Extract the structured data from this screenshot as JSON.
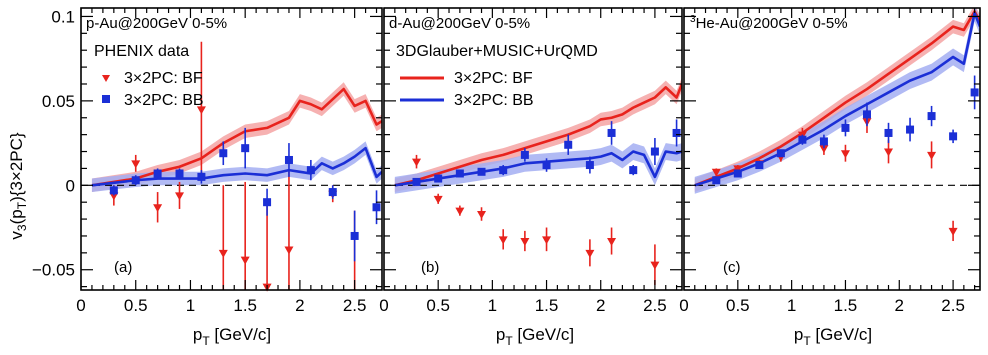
{
  "figure": {
    "ylabel_main": "v",
    "ylabel_sub1": "3",
    "ylabel_mid": "(p",
    "ylabel_sub2": "T",
    "ylabel_end": "){3×2PC}",
    "xlabel_main": "p",
    "xlabel_sub": "T",
    "xlabel_end": " [GeV/c]",
    "legend_data_title": "PHENIX data",
    "legend_model_title": "3DGlauber+MUSIC+UrQMD",
    "legend_bf_data": "3×2PC: BF",
    "legend_bb_data": "3×2PC: BB",
    "legend_bf_model": "3×2PC: BF",
    "legend_bb_model": "3×2PC: BB",
    "colors": {
      "bf": "#e8231d",
      "bb": "#1b2fd6",
      "bf_band": "#f5a3a3",
      "bb_band": "#a3aef2"
    }
  },
  "chart_data": [
    {
      "type": "line",
      "panel_title": "p-Au@200GeV 0-5%",
      "panel_tag": "(a)",
      "xlim": [
        0,
        2.75
      ],
      "ylim": [
        -0.062,
        0.105
      ],
      "xticks": [
        "0",
        "0.5",
        "1",
        "1.5",
        "2",
        "2.5"
      ],
      "yticks": [
        "−0.05",
        "0",
        "0.05",
        "0.1"
      ],
      "data_series": [
        {
          "name": "3×2PC: BF",
          "marker": "triangle-down",
          "points": [
            {
              "x": 0.3,
              "y": -0.006,
              "err": 0.006
            },
            {
              "x": 0.5,
              "y": 0.013,
              "err": 0.005
            },
            {
              "x": 0.7,
              "y": -0.013,
              "err": 0.009
            },
            {
              "x": 0.9,
              "y": -0.006,
              "err": 0.008
            },
            {
              "x": 1.1,
              "y": 0.045,
              "err": 0.04
            },
            {
              "x": 1.3,
              "y": -0.04,
              "err": 0.04
            },
            {
              "x": 1.5,
              "y": -0.044,
              "err": 0.046
            },
            {
              "x": 1.7,
              "y": -0.06,
              "err": 0.05
            },
            {
              "x": 1.9,
              "y": -0.038,
              "err": 0.046
            },
            {
              "x": 2.3,
              "y": -0.005,
              "err": 0.005
            },
            {
              "x": 2.5,
              "y": -0.075,
              "err": 0.06
            }
          ]
        },
        {
          "name": "3×2PC: BB",
          "marker": "square",
          "points": [
            {
              "x": 0.3,
              "y": -0.003,
              "err": 0.003
            },
            {
              "x": 0.5,
              "y": 0.003,
              "err": 0.003
            },
            {
              "x": 0.7,
              "y": 0.007,
              "err": 0.003
            },
            {
              "x": 0.9,
              "y": 0.007,
              "err": 0.003
            },
            {
              "x": 1.1,
              "y": 0.005,
              "err": 0.004
            },
            {
              "x": 1.3,
              "y": 0.019,
              "err": 0.007
            },
            {
              "x": 1.5,
              "y": 0.022,
              "err": 0.012
            },
            {
              "x": 1.7,
              "y": -0.01,
              "err": 0.008
            },
            {
              "x": 1.9,
              "y": 0.015,
              "err": 0.01
            },
            {
              "x": 2.1,
              "y": 0.009,
              "err": 0.006
            },
            {
              "x": 2.3,
              "y": -0.004,
              "err": 0.004
            },
            {
              "x": 2.5,
              "y": -0.03,
              "err": 0.015
            },
            {
              "x": 2.7,
              "y": -0.013,
              "err": 0.01
            }
          ]
        }
      ],
      "model_series": [
        {
          "name": "3×2PC: BF",
          "x": [
            0.1,
            0.3,
            0.5,
            0.7,
            0.9,
            1.1,
            1.3,
            1.5,
            1.7,
            1.9,
            2.0,
            2.1,
            2.2,
            2.3,
            2.4,
            2.5,
            2.6,
            2.7,
            2.75
          ],
          "y": [
            0.0,
            0.002,
            0.004,
            0.008,
            0.011,
            0.016,
            0.025,
            0.032,
            0.034,
            0.04,
            0.05,
            0.048,
            0.045,
            0.051,
            0.057,
            0.047,
            0.05,
            0.036,
            0.038
          ],
          "band": 0.004
        },
        {
          "name": "3×2PC: BB",
          "x": [
            0.1,
            0.3,
            0.5,
            0.7,
            0.9,
            1.1,
            1.3,
            1.5,
            1.7,
            1.9,
            2.0,
            2.1,
            2.2,
            2.3,
            2.4,
            2.5,
            2.6,
            2.7,
            2.75
          ],
          "y": [
            0.0,
            0.0015,
            0.003,
            0.004,
            0.004,
            0.004,
            0.006,
            0.007,
            0.006,
            0.009,
            0.008,
            0.007,
            0.013,
            0.01,
            0.013,
            0.017,
            0.022,
            0.005,
            0.008
          ],
          "band": 0.004
        }
      ]
    },
    {
      "type": "line",
      "panel_title": "d-Au@200GeV 0-5%",
      "panel_tag": "(b)",
      "xlim": [
        0,
        2.75
      ],
      "ylim": [
        -0.062,
        0.105
      ],
      "xticks": [
        "0",
        "0.5",
        "1",
        "1.5",
        "2",
        "2.5"
      ],
      "yticks": [],
      "data_series": [
        {
          "name": "3×2PC: BF",
          "marker": "triangle-down",
          "points": [
            {
              "x": 0.3,
              "y": 0.014,
              "err": 0.004
            },
            {
              "x": 0.5,
              "y": -0.008,
              "err": 0.003
            },
            {
              "x": 0.7,
              "y": -0.015,
              "err": 0.003
            },
            {
              "x": 0.9,
              "y": -0.017,
              "err": 0.004
            },
            {
              "x": 1.1,
              "y": -0.032,
              "err": 0.006
            },
            {
              "x": 1.3,
              "y": -0.033,
              "err": 0.006
            },
            {
              "x": 1.5,
              "y": -0.032,
              "err": 0.007
            },
            {
              "x": 1.9,
              "y": -0.04,
              "err": 0.008
            },
            {
              "x": 2.1,
              "y": -0.033,
              "err": 0.008
            },
            {
              "x": 2.5,
              "y": -0.047,
              "err": 0.012
            }
          ]
        },
        {
          "name": "3×2PC: BB",
          "marker": "square",
          "points": [
            {
              "x": 0.3,
              "y": 0.002,
              "err": 0.001
            },
            {
              "x": 0.5,
              "y": 0.004,
              "err": 0.002
            },
            {
              "x": 0.7,
              "y": 0.007,
              "err": 0.002
            },
            {
              "x": 0.9,
              "y": 0.008,
              "err": 0.002
            },
            {
              "x": 1.1,
              "y": 0.009,
              "err": 0.003
            },
            {
              "x": 1.3,
              "y": 0.018,
              "err": 0.004
            },
            {
              "x": 1.5,
              "y": 0.012,
              "err": 0.004
            },
            {
              "x": 1.7,
              "y": 0.024,
              "err": 0.006
            },
            {
              "x": 1.9,
              "y": 0.012,
              "err": 0.005
            },
            {
              "x": 2.1,
              "y": 0.031,
              "err": 0.007
            },
            {
              "x": 2.3,
              "y": 0.009,
              "err": 0.003
            },
            {
              "x": 2.5,
              "y": 0.02,
              "err": 0.008
            },
            {
              "x": 2.7,
              "y": 0.031,
              "err": 0.008
            }
          ]
        }
      ],
      "model_series": [
        {
          "name": "3×2PC: BF",
          "x": [
            0.1,
            0.3,
            0.5,
            0.7,
            0.9,
            1.1,
            1.3,
            1.5,
            1.7,
            1.9,
            2.0,
            2.1,
            2.2,
            2.3,
            2.4,
            2.5,
            2.6,
            2.7,
            2.75
          ],
          "y": [
            0.0,
            0.003,
            0.007,
            0.011,
            0.015,
            0.018,
            0.022,
            0.026,
            0.03,
            0.035,
            0.039,
            0.04,
            0.042,
            0.046,
            0.049,
            0.052,
            0.058,
            0.052,
            0.06
          ],
          "band": 0.004
        },
        {
          "name": "3×2PC: BB",
          "x": [
            0.1,
            0.3,
            0.5,
            0.7,
            0.9,
            1.1,
            1.3,
            1.5,
            1.7,
            1.9,
            2.0,
            2.1,
            2.2,
            2.3,
            2.4,
            2.5,
            2.6,
            2.7,
            2.75
          ],
          "y": [
            0.0,
            0.002,
            0.004,
            0.006,
            0.008,
            0.01,
            0.013,
            0.014,
            0.015,
            0.016,
            0.017,
            0.019,
            0.015,
            0.02,
            0.018,
            0.005,
            0.02,
            0.019,
            0.02
          ],
          "band": 0.005
        }
      ]
    },
    {
      "type": "line",
      "panel_title": "He-Au@200GeV 0-5%",
      "panel_title_sup": "3",
      "panel_tag": "(c)",
      "xlim": [
        0,
        2.75
      ],
      "ylim": [
        -0.062,
        0.105
      ],
      "xticks": [
        "0",
        "0.5",
        "1",
        "1.5",
        "2",
        "2.5"
      ],
      "yticks": [],
      "data_series": [
        {
          "name": "3×2PC: BF",
          "marker": "triangle-down",
          "points": [
            {
              "x": 0.3,
              "y": 0.008,
              "err": 0.002
            },
            {
              "x": 0.5,
              "y": 0.01,
              "err": 0.002
            },
            {
              "x": 0.7,
              "y": 0.013,
              "err": 0.002
            },
            {
              "x": 0.9,
              "y": 0.017,
              "err": 0.003
            },
            {
              "x": 1.1,
              "y": 0.03,
              "err": 0.004
            },
            {
              "x": 1.3,
              "y": 0.022,
              "err": 0.004
            },
            {
              "x": 1.5,
              "y": 0.019,
              "err": 0.005
            },
            {
              "x": 1.7,
              "y": 0.038,
              "err": 0.007
            },
            {
              "x": 1.9,
              "y": 0.02,
              "err": 0.007
            },
            {
              "x": 2.3,
              "y": 0.018,
              "err": 0.008
            },
            {
              "x": 2.5,
              "y": -0.027,
              "err": 0.006
            }
          ]
        },
        {
          "name": "3×2PC: BB",
          "marker": "square",
          "points": [
            {
              "x": 0.3,
              "y": 0.003,
              "err": 0.001
            },
            {
              "x": 0.5,
              "y": 0.007,
              "err": 0.002
            },
            {
              "x": 0.7,
              "y": 0.012,
              "err": 0.002
            },
            {
              "x": 0.9,
              "y": 0.019,
              "err": 0.002
            },
            {
              "x": 1.1,
              "y": 0.027,
              "err": 0.003
            },
            {
              "x": 1.3,
              "y": 0.026,
              "err": 0.004
            },
            {
              "x": 1.5,
              "y": 0.034,
              "err": 0.005
            },
            {
              "x": 1.7,
              "y": 0.042,
              "err": 0.007
            },
            {
              "x": 1.9,
              "y": 0.031,
              "err": 0.006
            },
            {
              "x": 2.1,
              "y": 0.033,
              "err": 0.007
            },
            {
              "x": 2.3,
              "y": 0.041,
              "err": 0.006
            },
            {
              "x": 2.5,
              "y": 0.029,
              "err": 0.004
            },
            {
              "x": 2.7,
              "y": 0.055,
              "err": 0.01
            }
          ]
        }
      ],
      "model_series": [
        {
          "name": "3×2PC: BF",
          "x": [
            0.1,
            0.3,
            0.5,
            0.7,
            0.9,
            1.1,
            1.3,
            1.5,
            1.7,
            1.9,
            2.1,
            2.3,
            2.5,
            2.6,
            2.7,
            2.75
          ],
          "y": [
            0.0,
            0.005,
            0.01,
            0.016,
            0.023,
            0.031,
            0.04,
            0.049,
            0.057,
            0.066,
            0.075,
            0.084,
            0.094,
            0.092,
            0.103,
            0.097
          ],
          "band": 0.004
        },
        {
          "name": "3×2PC: BB",
          "x": [
            0.1,
            0.3,
            0.5,
            0.7,
            0.9,
            1.1,
            1.3,
            1.5,
            1.7,
            1.9,
            2.1,
            2.3,
            2.5,
            2.6,
            2.7,
            2.75
          ],
          "y": [
            0.0,
            0.004,
            0.008,
            0.013,
            0.019,
            0.026,
            0.033,
            0.041,
            0.048,
            0.055,
            0.062,
            0.067,
            0.076,
            0.072,
            0.102,
            0.094
          ],
          "band": 0.005
        }
      ]
    }
  ]
}
